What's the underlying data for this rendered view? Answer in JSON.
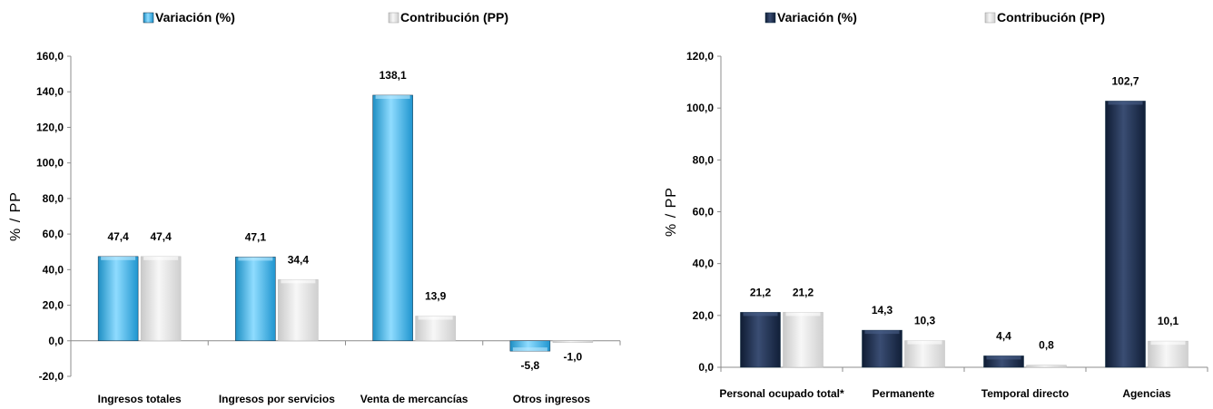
{
  "chart_data": [
    {
      "type": "bar",
      "categories": [
        "Ingresos totales",
        "Ingresos por servicios",
        "Venta de mercancías",
        "Otros ingresos"
      ],
      "series": [
        {
          "name": "Variación (%)",
          "values": [
            47.4,
            47.1,
            138.1,
            -5.8
          ],
          "labels": [
            "47,4",
            "47,1",
            "138,1",
            "-5,8"
          ],
          "color": "#3fb6e8"
        },
        {
          "name": "Contribución (PP)",
          "values": [
            47.4,
            34.4,
            13.9,
            -1.0
          ],
          "labels": [
            "47,4",
            "34,4",
            "13,9",
            "-1,0"
          ],
          "color": "#e4e4e4"
        }
      ],
      "ylabel": "% / PP",
      "ylim": [
        -20,
        160
      ],
      "yticks": [
        -20,
        0,
        20,
        40,
        60,
        80,
        100,
        120,
        140,
        160
      ],
      "ytick_labels": [
        "-20,0",
        "0,0",
        "20,0",
        "40,0",
        "60,0",
        "80,0",
        "100,0",
        "120,0",
        "140,0",
        "160,0"
      ],
      "grid": false,
      "legend": "top"
    },
    {
      "type": "bar",
      "categories": [
        "Personal ocupado total*",
        "Permanente",
        "Temporal directo",
        "Agencias"
      ],
      "series": [
        {
          "name": "Variación (%)",
          "values": [
            21.2,
            14.3,
            4.4,
            102.7
          ],
          "labels": [
            "21,2",
            "14,3",
            "4,4",
            "102,7"
          ],
          "color": "#1b2b4a"
        },
        {
          "name": "Contribución (PP)",
          "values": [
            21.2,
            10.3,
            0.8,
            10.1
          ],
          "labels": [
            "21,2",
            "10,3",
            "0,8",
            "10,1"
          ],
          "color": "#e4e4e4"
        }
      ],
      "ylabel": "% / PP",
      "ylim": [
        0,
        120
      ],
      "yticks": [
        0,
        20,
        40,
        60,
        80,
        100,
        120
      ],
      "ytick_labels": [
        "0,0",
        "20,0",
        "40,0",
        "60,0",
        "80,0",
        "100,0",
        "120,0"
      ],
      "grid": false,
      "legend": "top"
    }
  ]
}
